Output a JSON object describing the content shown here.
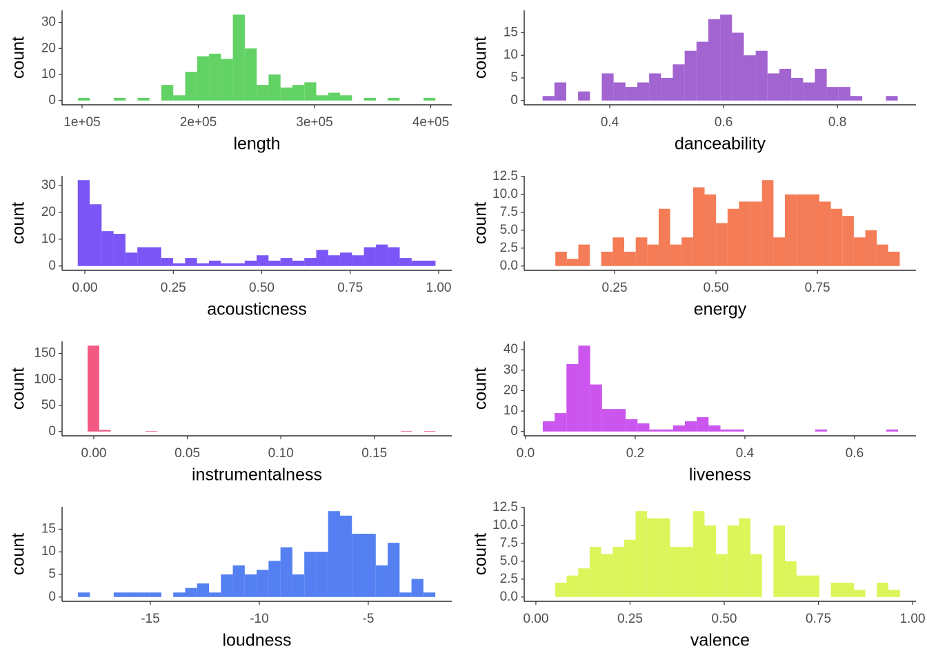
{
  "chart_data": [
    {
      "type": "histogram",
      "xlabel": "length",
      "ylabel": "count",
      "color": "#62d265",
      "bins": [
        96500,
        106750,
        117000,
        127250,
        137500,
        147750,
        158000,
        168250,
        178500,
        188750,
        199000,
        209250,
        219500,
        229750,
        240000,
        250250,
        260500,
        270750,
        281000,
        291250,
        301500,
        311750,
        322000,
        332250,
        342500,
        352750,
        363000,
        373250,
        383500,
        393750,
        404000
      ],
      "values": [
        1,
        0,
        0,
        1,
        0,
        1,
        0,
        6,
        2,
        11,
        17,
        18,
        16,
        33,
        20,
        6,
        10,
        5,
        6,
        7,
        2,
        3,
        2,
        0,
        1,
        0,
        1,
        0,
        0,
        1
      ],
      "xlim": [
        82800,
        418100
      ],
      "ylim": [
        -1.65,
        34.65
      ],
      "xticks": [
        {
          "value": 100000,
          "label": "1e+05"
        },
        {
          "value": 200000,
          "label": "2e+05"
        },
        {
          "value": 300000,
          "label": "3e+05"
        },
        {
          "value": 400000,
          "label": "4e+05"
        }
      ],
      "yticks": [
        0,
        10,
        20,
        30
      ]
    },
    {
      "type": "histogram",
      "xlabel": "danceability",
      "ylabel": "count",
      "color": "#a264d1",
      "bins": [
        0.282,
        0.3028,
        0.3236,
        0.3444,
        0.3652,
        0.386,
        0.4068,
        0.4276,
        0.4484,
        0.4692,
        0.49,
        0.5108,
        0.5316,
        0.5524,
        0.5732,
        0.594,
        0.6148,
        0.6356,
        0.6564,
        0.6772,
        0.698,
        0.7188,
        0.7396,
        0.7604,
        0.7812,
        0.802,
        0.8228,
        0.8436,
        0.8644,
        0.8852,
        0.906
      ],
      "values": [
        1,
        4,
        0,
        2,
        0,
        6,
        4,
        3,
        4,
        6,
        5,
        8,
        11,
        13,
        18,
        19,
        15,
        10,
        11,
        6,
        7,
        5,
        4,
        7,
        3,
        3,
        1,
        0,
        0,
        1
      ],
      "xlim": [
        0.2497,
        0.938
      ],
      "ylim": [
        -0.95,
        19.95
      ],
      "xticks": [
        0.4,
        0.6,
        0.8
      ],
      "yticks": [
        0,
        5,
        10,
        15
      ]
    },
    {
      "type": "histogram",
      "xlabel": "acousticness",
      "ylabel": "count",
      "color": "#7b55f5",
      "bins": [
        -0.02,
        0.0137,
        0.0474,
        0.0811,
        0.1148,
        0.1485,
        0.1822,
        0.2159,
        0.2496,
        0.2833,
        0.317,
        0.3507,
        0.3844,
        0.4181,
        0.4518,
        0.4855,
        0.5192,
        0.5529,
        0.5866,
        0.6203,
        0.654,
        0.6877,
        0.7214,
        0.7551,
        0.7888,
        0.8225,
        0.8562,
        0.8899,
        0.9236,
        0.9573,
        0.991
      ],
      "values": [
        32,
        23,
        13,
        12,
        5,
        7,
        7,
        3,
        1,
        3,
        1,
        2,
        1,
        1,
        2,
        4,
        2,
        3,
        2,
        3,
        6,
        4,
        5,
        4,
        7,
        8,
        7,
        3,
        2,
        2
      ],
      "xlim": [
        -0.0643,
        1.037
      ],
      "ylim": [
        -1.6,
        33.6
      ],
      "xticks": [
        {
          "value": 0,
          "label": "0.00"
        },
        0.25,
        {
          "value": 0.5,
          "label": "0.50"
        },
        0.75,
        {
          "value": 1,
          "label": "1.00"
        }
      ],
      "yticks": [
        0,
        10,
        20,
        30
      ]
    },
    {
      "type": "histogram",
      "xlabel": "energy",
      "ylabel": "count",
      "color": "#f47c56",
      "bins": [
        0.104,
        0.1323,
        0.1606,
        0.1889,
        0.2172,
        0.2455,
        0.2738,
        0.3021,
        0.3304,
        0.3587,
        0.387,
        0.4153,
        0.4436,
        0.4719,
        0.5002,
        0.5285,
        0.5568,
        0.5851,
        0.6134,
        0.6417,
        0.67,
        0.6983,
        0.7266,
        0.7549,
        0.7832,
        0.8115,
        0.8398,
        0.8681,
        0.8964,
        0.9247,
        0.953
      ],
      "values": [
        2,
        1,
        3,
        0,
        2,
        4,
        2,
        4,
        3,
        8,
        3,
        4,
        11,
        10,
        6,
        8,
        9,
        9,
        12,
        4,
        10,
        10,
        10,
        9,
        8,
        7,
        4,
        5,
        3,
        2
      ],
      "xlim": [
        0.0272,
        0.993
      ],
      "ylim": [
        -0.6,
        12.6
      ],
      "xticks": [
        0.25,
        {
          "value": 0.5,
          "label": "0.50"
        },
        0.75
      ],
      "yticks": [
        {
          "value": 0,
          "label": "0.0"
        },
        2.5,
        {
          "value": 5,
          "label": "5.0"
        },
        7.5,
        {
          "value": 10,
          "label": "10.0"
        },
        12.5
      ]
    },
    {
      "type": "histogram",
      "xlabel": "instrumentalness",
      "ylabel": "count",
      "color": "#f25a83",
      "bins": [
        -0.0033,
        0.0029,
        0.0091,
        0.0153,
        0.0215,
        0.0277,
        0.0339,
        0.0401,
        0.0463,
        0.0525,
        0.0587,
        0.0649,
        0.0711,
        0.0773,
        0.0835,
        0.0897,
        0.0959,
        0.1021,
        0.1083,
        0.1145,
        0.1207,
        0.1269,
        0.1331,
        0.1393,
        0.1455,
        0.1517,
        0.1579,
        0.1641,
        0.1703,
        0.1765,
        0.1827
      ],
      "values": [
        165,
        3,
        0,
        0,
        0,
        1,
        0,
        0,
        0,
        0,
        0,
        0,
        0,
        0,
        0,
        0,
        0,
        0,
        0,
        0,
        0,
        0,
        0,
        0,
        0,
        0,
        0,
        1,
        0,
        1
      ],
      "xlim": [
        -0.01696,
        0.1914
      ],
      "ylim": [
        -8.25,
        173.25
      ],
      "xticks": [
        {
          "value": 0,
          "label": "0.00"
        },
        0.05,
        {
          "value": 0.1,
          "label": "0.10"
        },
        0.15
      ],
      "yticks": [
        0,
        50,
        100,
        150
      ]
    },
    {
      "type": "histogram",
      "xlabel": "liveness",
      "ylabel": "count",
      "color": "#cc55ee",
      "bins": [
        0.0314,
        0.053,
        0.0746,
        0.0962,
        0.1178,
        0.1394,
        0.161,
        0.1826,
        0.2042,
        0.2258,
        0.2474,
        0.269,
        0.2906,
        0.3122,
        0.3338,
        0.3554,
        0.377,
        0.3986,
        0.4202,
        0.4418,
        0.4634,
        0.485,
        0.5066,
        0.5282,
        0.5498,
        0.5714,
        0.593,
        0.6146,
        0.6362,
        0.6578,
        0.6794
      ],
      "values": [
        5,
        9,
        33,
        42,
        23,
        11,
        11,
        6,
        4,
        1,
        1,
        3,
        5,
        7,
        3,
        1,
        1,
        0,
        0,
        0,
        0,
        0,
        0,
        1,
        0,
        0,
        0,
        0,
        0,
        1
      ],
      "xlim": [
        -0.0025,
        0.712
      ],
      "ylim": [
        -2.1,
        44.1
      ],
      "xticks": [
        {
          "value": 0,
          "label": "0.0"
        },
        0.2,
        0.4,
        0.6
      ],
      "yticks": [
        0,
        10,
        20,
        30,
        40
      ]
    },
    {
      "type": "histogram",
      "xlabel": "loudness",
      "ylabel": "count",
      "color": "#5580f2",
      "bins": [
        -18.32,
        -17.7735,
        -17.227,
        -16.6805,
        -16.134,
        -15.5875,
        -15.041,
        -14.4945,
        -13.948,
        -13.4015,
        -12.855,
        -12.3085,
        -11.762,
        -11.2155,
        -10.669,
        -10.1225,
        -9.576,
        -9.0295,
        -8.483,
        -7.9365,
        -7.39,
        -6.8435,
        -6.297,
        -5.7505,
        -5.204,
        -4.6575,
        -4.111,
        -3.5645,
        -3.018,
        -2.4715,
        -1.925
      ],
      "values": [
        1,
        0,
        0,
        1,
        1,
        1,
        1,
        0,
        1,
        2,
        3,
        1,
        5,
        7,
        5,
        6,
        8,
        11,
        5,
        10,
        10,
        19,
        18,
        14,
        14,
        7,
        12,
        1,
        4,
        1
      ],
      "xlim": [
        -19.05,
        -1.17
      ],
      "ylim": [
        -0.95,
        19.95
      ],
      "xticks": [
        -15,
        -10,
        -5
      ],
      "yticks": [
        0,
        5,
        10,
        15
      ]
    },
    {
      "type": "histogram",
      "xlabel": "valence",
      "ylabel": "count",
      "color": "#dbf55a",
      "bins": [
        0.0513,
        0.0818,
        0.1123,
        0.1428,
        0.1733,
        0.2038,
        0.2343,
        0.2648,
        0.2953,
        0.3258,
        0.3563,
        0.3868,
        0.4173,
        0.4478,
        0.4783,
        0.5088,
        0.5393,
        0.5698,
        0.6003,
        0.6308,
        0.6613,
        0.6918,
        0.7223,
        0.7528,
        0.7833,
        0.8138,
        0.8443,
        0.8748,
        0.9053,
        0.9358,
        0.9663
      ],
      "values": [
        2,
        3,
        4,
        7,
        6,
        7,
        8,
        12,
        11,
        11,
        7,
        7,
        12,
        10,
        6,
        10,
        11,
        6,
        0,
        10,
        5,
        3,
        3,
        0,
        2,
        2,
        1,
        0,
        2,
        1
      ],
      "xlim": [
        -0.031,
        1.009
      ],
      "ylim": [
        -0.6,
        12.6
      ],
      "xticks": [
        {
          "value": 0,
          "label": "0.00"
        },
        0.25,
        {
          "value": 0.5,
          "label": "0.50"
        },
        0.75,
        {
          "value": 1,
          "label": "1.00"
        }
      ],
      "yticks": [
        {
          "value": 0,
          "label": "0.0"
        },
        2.5,
        {
          "value": 5,
          "label": "5.0"
        },
        7.5,
        {
          "value": 10,
          "label": "10.0"
        },
        12.5
      ]
    }
  ]
}
